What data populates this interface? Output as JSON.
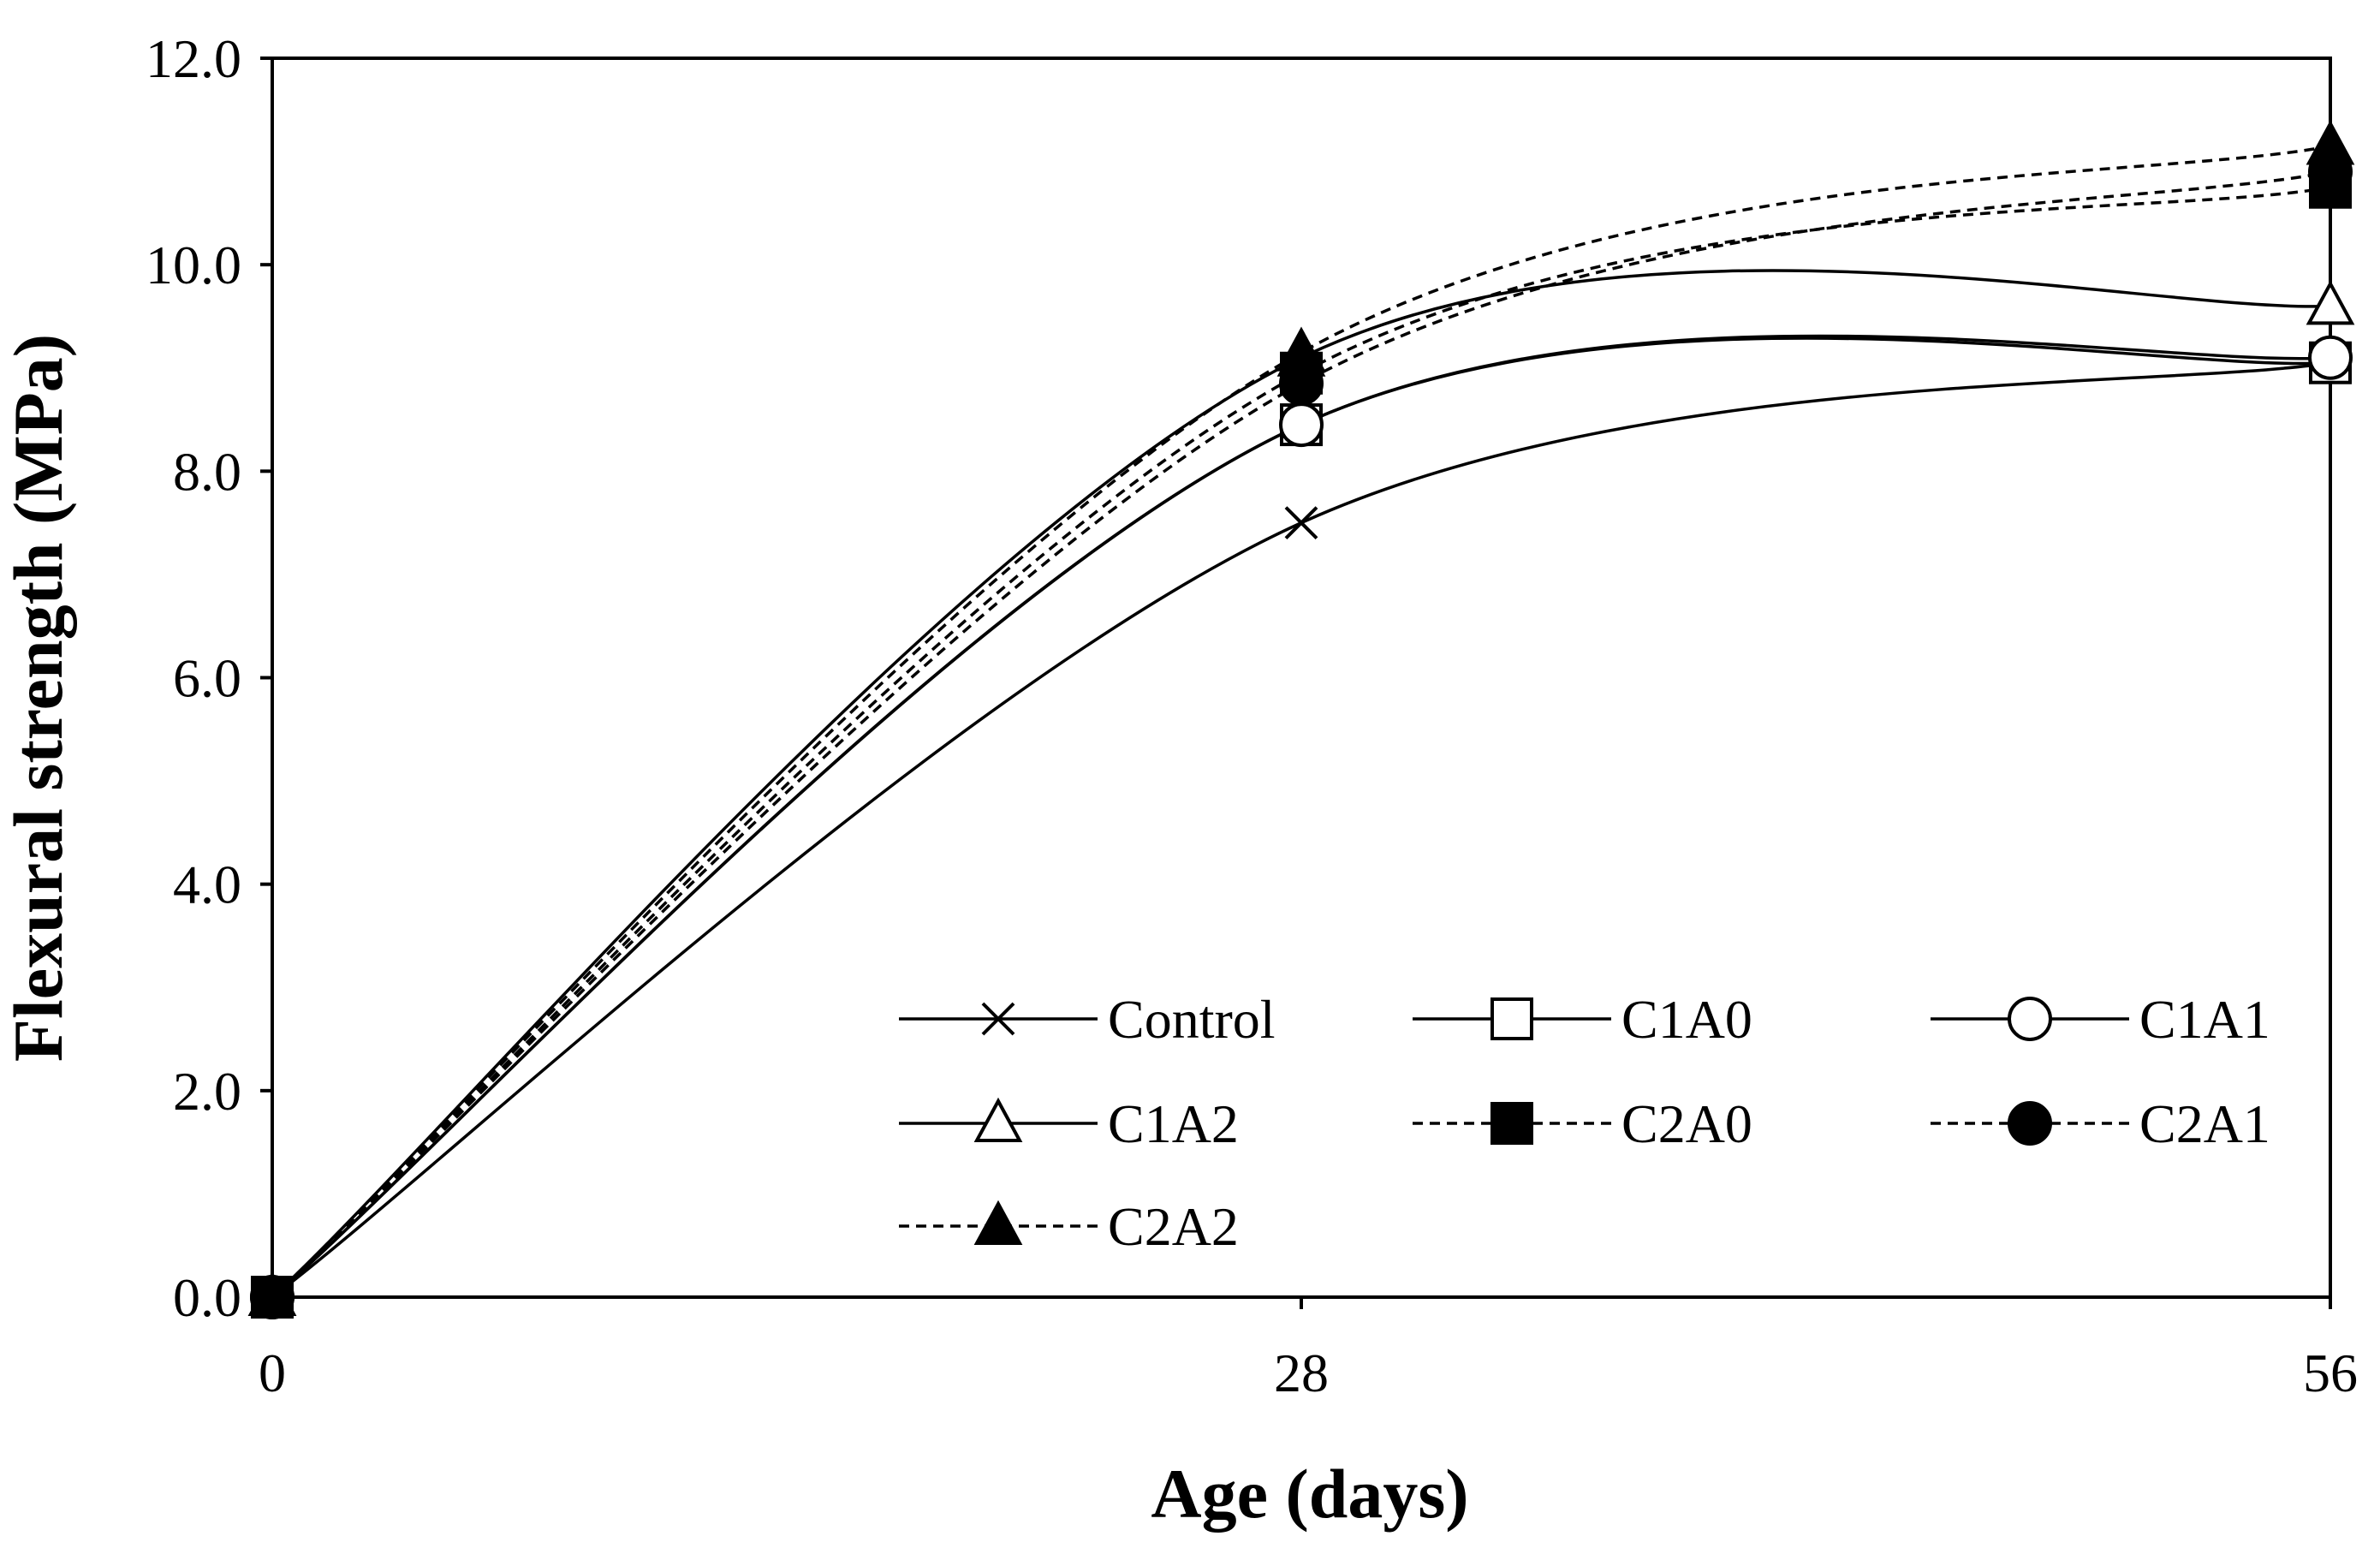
{
  "chart_data": {
    "type": "line",
    "title": "",
    "xlabel": "Age (days)",
    "ylabel": "Flexural strength (MPa)",
    "x": [
      0,
      28,
      56
    ],
    "x_tick_labels": [
      "0",
      "28",
      "56"
    ],
    "xlim": [
      0,
      56
    ],
    "ylim": [
      0,
      12
    ],
    "y_tick_labels": [
      "0.0",
      "2.0",
      "4.0",
      "6.0",
      "8.0",
      "10.0",
      "12.0"
    ],
    "grid": false,
    "legend_position": "bottom-right",
    "smooth": true,
    "series": [
      {
        "name": "Control",
        "values": [
          0,
          7.5,
          9.05
        ],
        "marker": "x",
        "dash": false,
        "fill": false
      },
      {
        "name": "C1A0",
        "values": [
          0,
          8.45,
          9.05
        ],
        "marker": "square",
        "dash": false,
        "fill": false
      },
      {
        "name": "C1A1",
        "values": [
          0,
          8.45,
          9.1
        ],
        "marker": "circle",
        "dash": false,
        "fill": false
      },
      {
        "name": "C1A2",
        "values": [
          0,
          9.1,
          9.6
        ],
        "marker": "triangle",
        "dash": false,
        "fill": false
      },
      {
        "name": "C2A0",
        "values": [
          0,
          8.95,
          10.75
        ],
        "marker": "square",
        "dash": true,
        "fill": true
      },
      {
        "name": "C2A1",
        "values": [
          0,
          8.85,
          10.9
        ],
        "marker": "circle",
        "dash": true,
        "fill": true
      },
      {
        "name": "C2A2",
        "values": [
          0,
          9.15,
          11.15
        ],
        "marker": "triangle",
        "dash": true,
        "fill": true
      }
    ]
  }
}
